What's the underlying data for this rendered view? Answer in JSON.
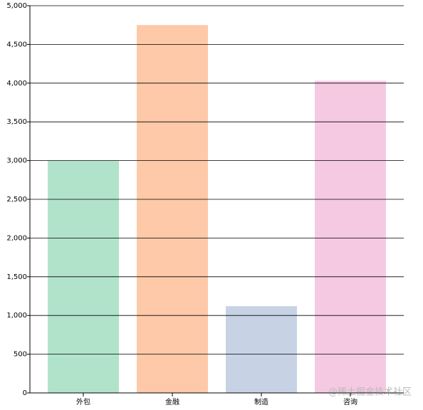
{
  "chart_data": {
    "type": "bar",
    "categories": [
      "外包",
      "金融",
      "制造",
      "咨询"
    ],
    "values": [
      3000,
      4750,
      1120,
      4030
    ],
    "colors": [
      "#b1e3cb",
      "#fdc9a8",
      "#c7d3e5",
      "#f6c9e3"
    ],
    "ylim": [
      0,
      5000
    ],
    "yticks": [
      0,
      500,
      {
        "value": 1000,
        "label": "1,000"
      },
      {
        "value": 1500,
        "label": "1,500"
      },
      {
        "value": 2000,
        "label": "2,000"
      },
      {
        "value": 2500,
        "label": "2,500"
      },
      {
        "value": 3000,
        "label": "3,000"
      },
      {
        "value": 3500,
        "label": "3,500"
      },
      {
        "value": 4000,
        "label": "4,000"
      },
      {
        "value": 4500,
        "label": "4,500"
      },
      {
        "value": 5000,
        "label": "5,000"
      }
    ],
    "grid": true,
    "watermark": "@稀土掘金技术社区"
  }
}
